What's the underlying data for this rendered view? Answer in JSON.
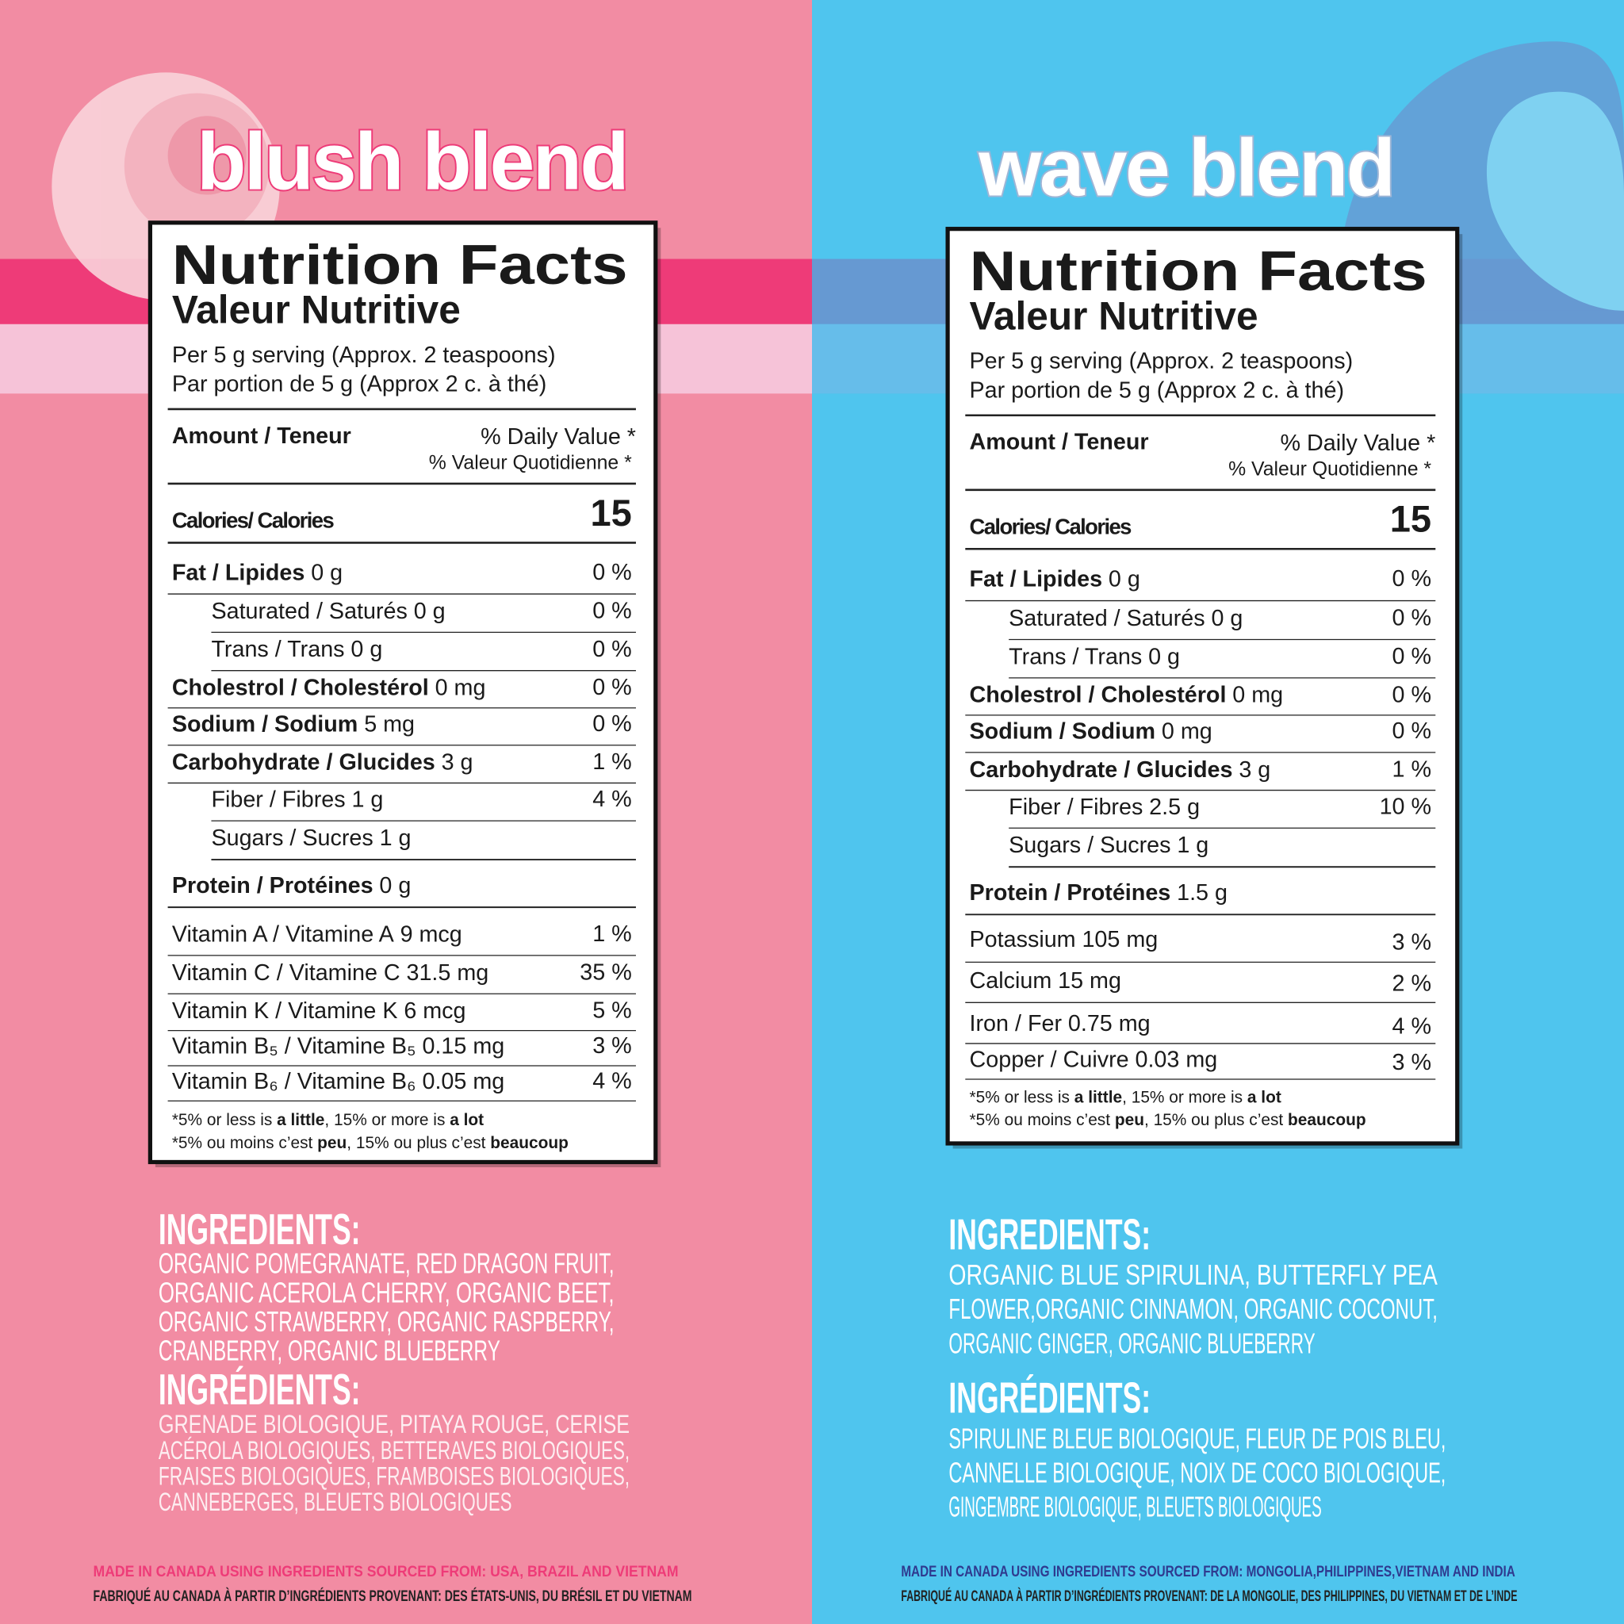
{
  "panels": [
    {
      "title": "blush blend",
      "nutrition": {
        "heading": "Nutrition Facts",
        "subheading": "Valeur Nutritive",
        "serving": [
          "Per 5 g serving (Approx. 2 teaspoons)",
          "Par portion de 5 g (Approx 2 c. à thé)"
        ],
        "amount_header": "Amount / Teneur",
        "dv_header": [
          "% Daily Value *",
          "% Valeur Quotidienne *"
        ],
        "calories_label": "Calories/ Calories",
        "calories": 15,
        "rows": [
          {
            "name": "Fat / Lipides",
            "amount": "0 g",
            "dv": "0 %",
            "style": "main"
          },
          {
            "name": "Saturated / Saturés",
            "amount": "0 g",
            "dv": "0 %",
            "style": "sub"
          },
          {
            "name": "Trans / Trans",
            "amount": "0 g",
            "dv": "0 %",
            "style": "sub"
          },
          {
            "name": "Cholestrol / Cholestérol",
            "amount": "0 mg",
            "dv": "0 %",
            "style": "main"
          },
          {
            "name": "Sodium / Sodium",
            "amount": "5 mg",
            "dv": "0 %",
            "style": "main"
          },
          {
            "name": "Carbohydrate / Glucides",
            "amount": "3 g",
            "dv": "1 %",
            "style": "main"
          },
          {
            "name": "Fiber / Fibres",
            "amount": "1 g",
            "dv": "4 %",
            "style": "sub"
          },
          {
            "name": "Sugars / Sucres",
            "amount": "1 g",
            "dv": null,
            "style": "sub"
          },
          {
            "name": "Protein / Protéines",
            "amount": "0 g",
            "dv": null,
            "style": "main"
          },
          {
            "name": "Vitamin A / Vitamine A",
            "amount": "9 mcg",
            "dv": "1 %",
            "style": "plain"
          },
          {
            "name": "Vitamin C / Vitamine C",
            "amount": "31.5 mg",
            "dv": "35 %",
            "style": "plain"
          },
          {
            "name": "Vitamin K / Vitamine K",
            "amount": "6 mcg",
            "dv": "5 %",
            "style": "plain"
          },
          {
            "name": "Vitamin B₅ / Vitamine B₅",
            "amount": "0.15 mg",
            "dv": "3 %",
            "style": "plain"
          },
          {
            "name": "Vitamin B₆ / Vitamine B₆",
            "amount": "0.05 mg",
            "dv": "4 %",
            "style": "plain"
          }
        ],
        "footnote": [
          [
            "*5% or less is ",
            "a little",
            ", 15% or more is ",
            "a lot"
          ],
          [
            "*5% ou moins c’est ",
            "peu",
            ", 15% ou plus c’est ",
            "beaucoup"
          ]
        ]
      },
      "ingredients": {
        "heading": "INGREDIENTS:",
        "lines": [
          "ORGANIC POMEGRANATE, RED DRAGON FRUIT,",
          "ORGANIC ACEROLA CHERRY, ORGANIC BEET,",
          "ORGANIC STRAWBERRY, ORGANIC RASPBERRY,",
          "CRANBERRY, ORGANIC BLUEBERRY"
        ]
      },
      "ingredients_fr": {
        "heading": "INGRÉDIENTS:",
        "lines": [
          "GRENADE BIOLOGIQUE, PITAYA ROUGE, CERISE",
          "ACÉROLA BIOLOGIQUES, BETTERAVES BIOLOGIQUES,",
          "FRAISES BIOLOGIQUES, FRAMBOISES BIOLOGIQUES,",
          "CANNEBERGES, BLEUETS BIOLOGIQUES"
        ]
      },
      "origin": [
        "MADE IN CANADA USING INGREDIENTS SOURCED FROM: USA, BRAZIL AND VIETNAM",
        "FABRIQUÉ AU CANADA À PARTIR D’INGRÉDIENTS PROVENANT: DES ÉTATS-UNIS, DU BRÉSIL ET DU VIETNAM"
      ]
    },
    {
      "title": "wave blend",
      "nutrition": {
        "heading": "Nutrition Facts",
        "subheading": "Valeur Nutritive",
        "serving": [
          "Per 5 g serving (Approx. 2 teaspoons)",
          "Par portion de 5 g (Approx 2 c. à thé)"
        ],
        "amount_header": "Amount / Teneur",
        "dv_header": [
          "% Daily Value *",
          "% Valeur Quotidienne *"
        ],
        "calories_label": "Calories/ Calories",
        "calories": 15,
        "rows": [
          {
            "name": "Fat / Lipides",
            "amount": "0 g",
            "dv": "0 %",
            "style": "main"
          },
          {
            "name": "Saturated / Saturés",
            "amount": "0 g",
            "dv": "0 %",
            "style": "sub"
          },
          {
            "name": "Trans / Trans",
            "amount": "0 g",
            "dv": "0 %",
            "style": "sub"
          },
          {
            "name": "Cholestrol / Cholestérol",
            "amount": "0 mg",
            "dv": "0 %",
            "style": "main"
          },
          {
            "name": "Sodium / Sodium",
            "amount": "0 mg",
            "dv": "0 %",
            "style": "main"
          },
          {
            "name": "Carbohydrate / Glucides",
            "amount": "3 g",
            "dv": "1 %",
            "style": "main"
          },
          {
            "name": "Fiber / Fibres",
            "amount": "2.5 g",
            "dv": "10 %",
            "style": "sub"
          },
          {
            "name": "Sugars / Sucres",
            "amount": "1 g",
            "dv": null,
            "style": "sub"
          },
          {
            "name": "Protein / Protéines",
            "amount": "1.5 g",
            "dv": null,
            "style": "main"
          },
          {
            "name": "Potassium",
            "amount": "105 mg",
            "dv": "3 %",
            "style": "plain"
          },
          {
            "name": "Calcium",
            "amount": "15 mg",
            "dv": "2 %",
            "style": "plain"
          },
          {
            "name": "Iron / Fer",
            "amount": "0.75 mg",
            "dv": "4 %",
            "style": "plain"
          },
          {
            "name": "Copper / Cuivre",
            "amount": "0.03 mg",
            "dv": "3 %",
            "style": "plain"
          }
        ],
        "footnote": [
          [
            "*5% or less is ",
            "a little",
            ", 15% or more is ",
            "a lot"
          ],
          [
            "*5% ou moins c’est ",
            "peu",
            ", 15% ou plus c’est ",
            "beaucoup"
          ]
        ]
      },
      "ingredients": {
        "heading": "INGREDIENTS:",
        "lines": [
          "ORGANIC BLUE SPIRULINA, BUTTERFLY PEA",
          "FLOWER,ORGANIC CINNAMON, ORGANIC COCONUT,",
          "ORGANIC GINGER, ORGANIC BLUEBERRY"
        ]
      },
      "ingredients_fr": {
        "heading": "INGRÉDIENTS:",
        "lines": [
          "SPIRULINE BLEUE BIOLOGIQUE, FLEUR DE POIS BLEU,",
          "CANNELLE BIOLOGIQUE, NOIX DE COCO BIOLOGIQUE,",
          "GINGEMBRE BIOLOGIQUE, BLEUETS BIOLOGIQUES"
        ]
      },
      "origin": [
        "MADE IN CANADA USING INGREDIENTS SOURCED FROM: MONGOLIA,PHILIPPINES,VIETNAM AND INDIA",
        "FABRIQUÉ AU CANADA À PARTIR D’INGRÉDIENTS PROVENANT: DE LA MONGOLIE, DES PHILIPPINES, DU VIETNAM ET DE L’INDE"
      ]
    }
  ]
}
